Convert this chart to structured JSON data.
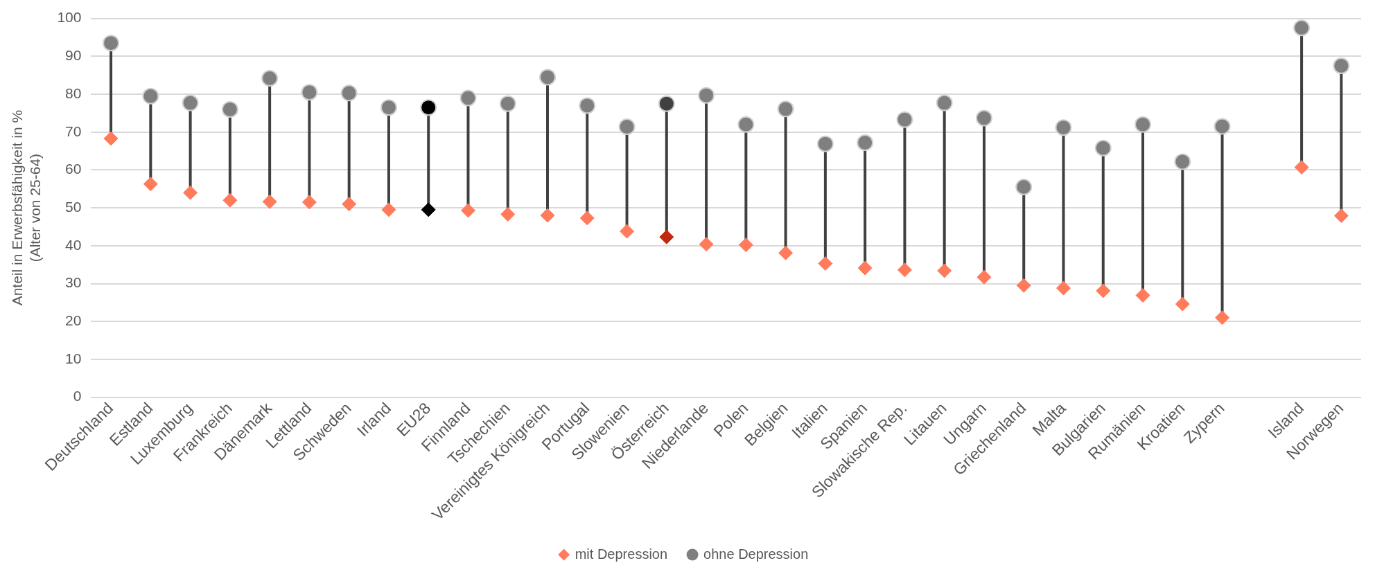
{
  "chart_data": {
    "type": "scatter",
    "ylabel": "Anteil in Erwerbsfähigkeit in %\n(Alter von 25-64)",
    "categories": [
      "Deutschland",
      "Estland",
      "Luxemburg",
      "Frankreich",
      "Dänemark",
      "Lettland",
      "Schweden",
      "Irland",
      "EU28",
      "Finnland",
      "Tschechien",
      "Vereinigtes Königreich",
      "Portugal",
      "Slowenien",
      "Österreich",
      "Niederlande",
      "Polen",
      "Belgien",
      "Italien",
      "Spanien",
      "Slowakische Rep.",
      "Litauen",
      "Ungarn",
      "Griechenland",
      "Malta",
      "Bulgarien",
      "Rumänien",
      "Kroatien",
      "Zypern",
      null,
      "Island",
      "Norwegen"
    ],
    "series": [
      {
        "name": "mit Depression",
        "color": "#ff7b5c",
        "marker": "diamond",
        "colors": [
          "#ff7b5c",
          "#ff7b5c",
          "#ff7b5c",
          "#ff7b5c",
          "#ff7b5c",
          "#ff7b5c",
          "#ff7b5c",
          "#ff7b5c",
          "#000000",
          "#ff7b5c",
          "#ff7b5c",
          "#ff7b5c",
          "#ff7b5c",
          "#ff7b5c",
          "#c0280f",
          "#ff7b5c",
          "#ff7b5c",
          "#ff7b5c",
          "#ff7b5c",
          "#ff7b5c",
          "#ff7b5c",
          "#ff7b5c",
          "#ff7b5c",
          "#ff7b5c",
          "#ff7b5c",
          "#ff7b5c",
          "#ff7b5c",
          "#ff7b5c",
          "#ff7b5c",
          "#ff7b5c",
          "#ff7b5c",
          "#ff7b5c"
        ],
        "values": [
          68.3,
          56.3,
          54,
          52,
          51.6,
          51.5,
          51,
          49.5,
          49.5,
          49.3,
          48.3,
          48,
          47.3,
          43.8,
          42.3,
          40.4,
          40.2,
          38.1,
          35.3,
          34.1,
          33.6,
          33.4,
          31.7,
          29.5,
          28.8,
          28.1,
          26.9,
          24.6,
          21,
          null,
          60.7,
          47.9
        ]
      },
      {
        "name": "ohne Depression",
        "color": "#7f7f7f",
        "marker": "circle",
        "colors": [
          "#7f7f7f",
          "#7f7f7f",
          "#7f7f7f",
          "#7f7f7f",
          "#7f7f7f",
          "#7f7f7f",
          "#7f7f7f",
          "#7f7f7f",
          "#000000",
          "#7f7f7f",
          "#7f7f7f",
          "#7f7f7f",
          "#7f7f7f",
          "#7f7f7f",
          "#404040",
          "#7f7f7f",
          "#7f7f7f",
          "#7f7f7f",
          "#7f7f7f",
          "#7f7f7f",
          "#7f7f7f",
          "#7f7f7f",
          "#7f7f7f",
          "#7f7f7f",
          "#7f7f7f",
          "#7f7f7f",
          "#7f7f7f",
          "#7f7f7f",
          "#7f7f7f",
          "#7f7f7f",
          "#7f7f7f",
          "#7f7f7f"
        ],
        "values": [
          93.5,
          79.5,
          77.7,
          76,
          84.2,
          80.5,
          80.3,
          76.5,
          76.5,
          79,
          77.5,
          84.5,
          77,
          71.4,
          77.5,
          79.7,
          72,
          76.1,
          66.9,
          67.2,
          73.3,
          77.7,
          73.7,
          55.5,
          71.2,
          65.8,
          72,
          62.2,
          71.5,
          null,
          97.5,
          87.5
        ]
      }
    ],
    "ylim": [
      0,
      100
    ],
    "yticks": [
      0,
      10,
      20,
      30,
      40,
      50,
      60,
      70,
      80,
      90,
      100
    ],
    "grid": "y",
    "legend": "bottom"
  }
}
